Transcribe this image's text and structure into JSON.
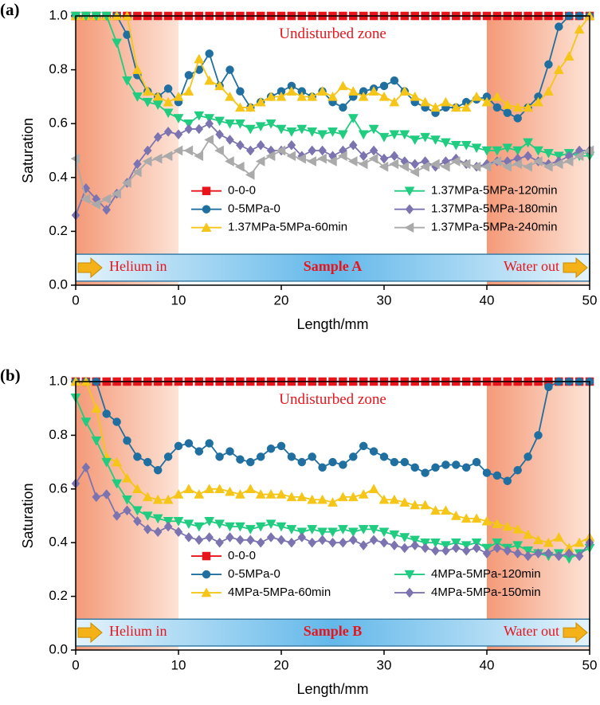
{
  "chart_data": [
    {
      "type": "line",
      "panel_label": "(a)",
      "xlabel": "Length/mm",
      "ylabel": "Saturation",
      "xlim": [
        0,
        50
      ],
      "ylim": [
        0,
        1
      ],
      "xticks": [
        0,
        10,
        20,
        30,
        40,
        50
      ],
      "yticks": [
        {
          "value": 0,
          "label": "0.0"
        },
        0.2,
        0.4,
        0.6,
        0.8,
        {
          "value": 1,
          "label": "1.0"
        }
      ],
      "shaded_regions": [
        [
          0,
          10
        ],
        [
          40,
          50
        ]
      ],
      "annotations": {
        "zone": "Undisturbed zone",
        "inlet": "Helium in",
        "sample": "Sample A",
        "outlet": "Water out"
      },
      "x": [
        0,
        1,
        2,
        3,
        4,
        5,
        6,
        7,
        8,
        9,
        10,
        11,
        12,
        13,
        14,
        15,
        16,
        17,
        18,
        19,
        20,
        21,
        22,
        23,
        24,
        25,
        26,
        27,
        28,
        29,
        30,
        31,
        32,
        33,
        34,
        35,
        36,
        37,
        38,
        39,
        40,
        41,
        42,
        43,
        44,
        45,
        46,
        47,
        48,
        49,
        50
      ],
      "series": [
        {
          "name": "0-0-0",
          "color": "#e8141c",
          "marker": "square",
          "values": [
            1,
            1,
            1,
            1,
            1,
            1,
            1,
            1,
            1,
            1,
            1,
            1,
            1,
            1,
            1,
            1,
            1,
            1,
            1,
            1,
            1,
            1,
            1,
            1,
            1,
            1,
            1,
            1,
            1,
            1,
            1,
            1,
            1,
            1,
            1,
            1,
            1,
            1,
            1,
            1,
            1,
            1,
            1,
            1,
            1,
            1,
            1,
            1,
            1,
            1,
            1
          ]
        },
        {
          "name": "0-5MPa-0",
          "color": "#1f6fa0",
          "marker": "circle",
          "values": [
            1,
            1,
            1,
            1,
            1,
            0.93,
            0.78,
            0.72,
            0.7,
            0.73,
            0.68,
            0.78,
            0.8,
            0.86,
            0.74,
            0.8,
            0.72,
            0.66,
            0.68,
            0.7,
            0.72,
            0.74,
            0.72,
            0.7,
            0.72,
            0.68,
            0.66,
            0.7,
            0.72,
            0.73,
            0.74,
            0.76,
            0.72,
            0.68,
            0.66,
            0.64,
            0.66,
            0.66,
            0.68,
            0.69,
            0.7,
            0.66,
            0.64,
            0.62,
            0.66,
            0.7,
            0.82,
            0.96,
            1,
            1,
            1
          ]
        },
        {
          "name": "1.37MPa-5MPa-60min",
          "color": "#f5c518",
          "marker": "triangle-up",
          "values": [
            1,
            1,
            1,
            1,
            1,
            1,
            0.8,
            0.72,
            0.7,
            0.68,
            0.7,
            0.72,
            0.84,
            0.76,
            0.74,
            0.7,
            0.66,
            0.66,
            0.68,
            0.7,
            0.7,
            0.72,
            0.7,
            0.7,
            0.72,
            0.7,
            0.74,
            0.72,
            0.7,
            0.72,
            0.7,
            0.68,
            0.72,
            0.7,
            0.68,
            0.66,
            0.68,
            0.66,
            0.66,
            0.7,
            0.68,
            0.7,
            0.67,
            0.66,
            0.66,
            0.68,
            0.72,
            0.8,
            0.85,
            0.95,
            1
          ]
        },
        {
          "name": "1.37MPa-5MPa-120min",
          "color": "#1fcc80",
          "marker": "triangle-down",
          "values": [
            1,
            1,
            1,
            1,
            0.9,
            0.76,
            0.7,
            0.68,
            0.67,
            0.64,
            0.62,
            0.6,
            0.63,
            0.62,
            0.61,
            0.6,
            0.6,
            0.58,
            0.59,
            0.6,
            0.58,
            0.57,
            0.58,
            0.57,
            0.56,
            0.57,
            0.56,
            0.62,
            0.56,
            0.58,
            0.55,
            0.56,
            0.56,
            0.54,
            0.55,
            0.54,
            0.53,
            0.52,
            0.52,
            0.51,
            0.5,
            0.5,
            0.51,
            0.5,
            0.53,
            0.5,
            0.49,
            0.48,
            0.49,
            0.48,
            0.48
          ]
        },
        {
          "name": "1.37MPa-5MPa-180min",
          "color": "#7b74b0",
          "marker": "diamond",
          "values": [
            0.26,
            0.36,
            0.32,
            0.28,
            0.34,
            0.38,
            0.45,
            0.5,
            0.55,
            0.57,
            0.56,
            0.58,
            0.58,
            0.6,
            0.56,
            0.54,
            0.52,
            0.5,
            0.52,
            0.5,
            0.5,
            0.52,
            0.48,
            0.5,
            0.5,
            0.48,
            0.5,
            0.52,
            0.48,
            0.5,
            0.47,
            0.48,
            0.46,
            0.45,
            0.46,
            0.44,
            0.46,
            0.47,
            0.45,
            0.44,
            0.45,
            0.46,
            0.46,
            0.47,
            0.48,
            0.46,
            0.45,
            0.46,
            0.48,
            0.5,
            0.5
          ]
        },
        {
          "name": "1.37MPa-5MPa-240min",
          "color": "#aaaaaa",
          "marker": "triangle-left",
          "values": [
            0.47,
            0.32,
            0.3,
            0.32,
            0.34,
            0.38,
            0.42,
            0.46,
            0.47,
            0.48,
            0.5,
            0.5,
            0.48,
            0.54,
            0.5,
            0.46,
            0.44,
            0.41,
            0.46,
            0.48,
            0.5,
            0.48,
            0.47,
            0.46,
            0.47,
            0.46,
            0.48,
            0.46,
            0.45,
            0.47,
            0.44,
            0.45,
            0.44,
            0.42,
            0.44,
            0.45,
            0.44,
            0.46,
            0.45,
            0.44,
            0.44,
            0.46,
            0.44,
            0.45,
            0.44,
            0.46,
            0.44,
            0.45,
            0.46,
            0.48,
            0.5
          ]
        }
      ]
    },
    {
      "type": "line",
      "panel_label": "(b)",
      "xlabel": "Length/mm",
      "ylabel": "Saturation",
      "xlim": [
        0,
        50
      ],
      "ylim": [
        0,
        1
      ],
      "xticks": [
        0,
        10,
        20,
        30,
        40,
        50
      ],
      "yticks": [
        {
          "value": 0,
          "label": "0.0"
        },
        0.2,
        0.4,
        0.6,
        0.8,
        {
          "value": 1,
          "label": "1.0"
        }
      ],
      "shaded_regions": [
        [
          0,
          10
        ],
        [
          40,
          50
        ]
      ],
      "annotations": {
        "zone": "Undisturbed zone",
        "inlet": "Helium in",
        "sample": "Sample B",
        "outlet": "Water out"
      },
      "x": [
        0,
        1,
        2,
        3,
        4,
        5,
        6,
        7,
        8,
        9,
        10,
        11,
        12,
        13,
        14,
        15,
        16,
        17,
        18,
        19,
        20,
        21,
        22,
        23,
        24,
        25,
        26,
        27,
        28,
        29,
        30,
        31,
        32,
        33,
        34,
        35,
        36,
        37,
        38,
        39,
        40,
        41,
        42,
        43,
        44,
        45,
        46,
        47,
        48,
        49,
        50
      ],
      "series": [
        {
          "name": "0-0-0",
          "color": "#e8141c",
          "marker": "square",
          "values": [
            1,
            1,
            1,
            1,
            1,
            1,
            1,
            1,
            1,
            1,
            1,
            1,
            1,
            1,
            1,
            1,
            1,
            1,
            1,
            1,
            1,
            1,
            1,
            1,
            1,
            1,
            1,
            1,
            1,
            1,
            1,
            1,
            1,
            1,
            1,
            1,
            1,
            1,
            1,
            1,
            1,
            1,
            1,
            1,
            1,
            1,
            1,
            1,
            1,
            1,
            1
          ]
        },
        {
          "name": "0-5MPa-0",
          "color": "#1f6fa0",
          "marker": "circle",
          "values": [
            1,
            1,
            1,
            0.88,
            0.85,
            0.78,
            0.72,
            0.7,
            0.67,
            0.72,
            0.76,
            0.77,
            0.74,
            0.77,
            0.72,
            0.74,
            0.71,
            0.7,
            0.72,
            0.75,
            0.76,
            0.72,
            0.7,
            0.72,
            0.68,
            0.7,
            0.69,
            0.72,
            0.76,
            0.74,
            0.72,
            0.7,
            0.7,
            0.68,
            0.66,
            0.68,
            0.69,
            0.69,
            0.68,
            0.7,
            0.66,
            0.65,
            0.63,
            0.67,
            0.72,
            0.8,
            0.98,
            1,
            1,
            1,
            1
          ]
        },
        {
          "name": "4MPa-5MPa-60min",
          "color": "#f5c518",
          "marker": "triangle-up",
          "values": [
            1,
            1,
            0.9,
            0.72,
            0.7,
            0.64,
            0.6,
            0.57,
            0.56,
            0.56,
            0.58,
            0.6,
            0.58,
            0.6,
            0.6,
            0.59,
            0.58,
            0.6,
            0.58,
            0.58,
            0.58,
            0.57,
            0.57,
            0.56,
            0.56,
            0.55,
            0.57,
            0.57,
            0.58,
            0.6,
            0.56,
            0.56,
            0.55,
            0.54,
            0.54,
            0.52,
            0.52,
            0.5,
            0.49,
            0.49,
            0.48,
            0.47,
            0.46,
            0.45,
            0.43,
            0.41,
            0.4,
            0.42,
            0.38,
            0.4,
            0.42
          ]
        },
        {
          "name": "4MPa-5MPa-120min",
          "color": "#1fcc80",
          "marker": "triangle-down",
          "values": [
            0.94,
            0.85,
            0.78,
            0.7,
            0.62,
            0.56,
            0.52,
            0.5,
            0.49,
            0.48,
            0.48,
            0.47,
            0.46,
            0.48,
            0.47,
            0.46,
            0.46,
            0.45,
            0.46,
            0.47,
            0.46,
            0.45,
            0.44,
            0.45,
            0.44,
            0.44,
            0.45,
            0.44,
            0.45,
            0.45,
            0.44,
            0.43,
            0.42,
            0.41,
            0.4,
            0.4,
            0.39,
            0.4,
            0.39,
            0.4,
            0.38,
            0.4,
            0.38,
            0.39,
            0.37,
            0.36,
            0.35,
            0.36,
            0.34,
            0.36,
            0.38
          ]
        },
        {
          "name": "4MPa-5MPa-150min",
          "color": "#7b74b0",
          "marker": "diamond",
          "values": [
            0.62,
            0.68,
            0.57,
            0.58,
            0.5,
            0.52,
            0.48,
            0.45,
            0.44,
            0.46,
            0.44,
            0.42,
            0.41,
            0.42,
            0.4,
            0.42,
            0.41,
            0.41,
            0.4,
            0.42,
            0.41,
            0.4,
            0.42,
            0.4,
            0.41,
            0.4,
            0.4,
            0.41,
            0.39,
            0.41,
            0.4,
            0.39,
            0.38,
            0.39,
            0.38,
            0.37,
            0.37,
            0.38,
            0.37,
            0.38,
            0.36,
            0.38,
            0.37,
            0.36,
            0.35,
            0.36,
            0.36,
            0.35,
            0.36,
            0.35,
            0.4
          ]
        }
      ]
    }
  ]
}
